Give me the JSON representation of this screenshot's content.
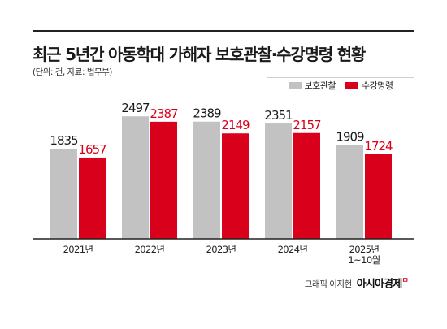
{
  "title": "최근 5년간 아동학대 가해자 보호관찰·수강명령 현황",
  "note": "(단위: 건, 자료: 법무부)",
  "credit": {
    "byline": "그래픽 이지현",
    "brand": "아시아경제"
  },
  "colors": {
    "series_1": "#c2c2c2",
    "series_2": "#d9001b",
    "axis": "#222222",
    "label": "#1a1a1a"
  },
  "chart_data": {
    "type": "bar",
    "categories": [
      "2021년",
      "2022년",
      "2023년",
      "2024년",
      "2025년\n1~10월"
    ],
    "series": [
      {
        "name": "보호관찰",
        "values": [
          1835,
          2497,
          2389,
          2351,
          1909
        ]
      },
      {
        "name": "수강명령",
        "values": [
          1657,
          2387,
          2149,
          2157,
          1724
        ]
      }
    ],
    "title": "최근 5년간 아동학대 가해자 보호관찰·수강명령 현황",
    "xlabel": "",
    "ylabel": "",
    "legend": "top-right",
    "grid": false,
    "data_labels": true
  }
}
